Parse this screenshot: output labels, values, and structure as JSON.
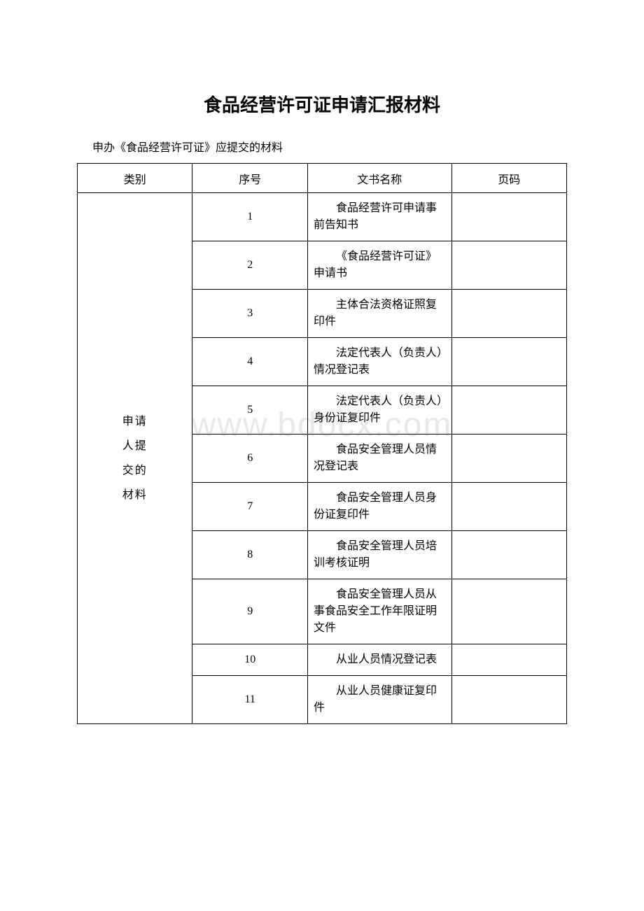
{
  "title": "食品经营许可证申请汇报材料",
  "subtitle": "申办《食品经营许可证》应提交的材料",
  "watermark": "www.bdocx.com",
  "table": {
    "headers": {
      "category": "类别",
      "sequence": "序号",
      "docname": "文书名称",
      "page": "页码"
    },
    "category_label": "申请\n人提\n交的\n材料",
    "rows": [
      {
        "seq": "1",
        "name": "食品经营许可申请事前告知书",
        "page": ""
      },
      {
        "seq": "2",
        "name": "《食品经营许可证》申请书",
        "page": ""
      },
      {
        "seq": "3",
        "name": "主体合法资格证照复印件",
        "page": ""
      },
      {
        "seq": "4",
        "name": "法定代表人（负责人）情况登记表",
        "page": ""
      },
      {
        "seq": "5",
        "name": "法定代表人（负责人）身份证复印件",
        "page": ""
      },
      {
        "seq": "6",
        "name": "食品安全管理人员情况登记表",
        "page": ""
      },
      {
        "seq": "7",
        "name": "食品安全管理人员身份证复印件",
        "page": ""
      },
      {
        "seq": "8",
        "name": "食品安全管理人员培训考核证明",
        "page": ""
      },
      {
        "seq": "9",
        "name": "食品安全管理人员从事食品安全工作年限证明文件",
        "page": ""
      },
      {
        "seq": "10",
        "name": "从业人员情况登记表",
        "page": ""
      },
      {
        "seq": "11",
        "name": "从业人员健康证复印件",
        "page": ""
      }
    ]
  },
  "style": {
    "background_color": "#ffffff",
    "text_color": "#000000",
    "border_color": "#000000",
    "watermark_color": "#e8e8e8",
    "title_fontsize": 26,
    "body_fontsize": 16
  }
}
